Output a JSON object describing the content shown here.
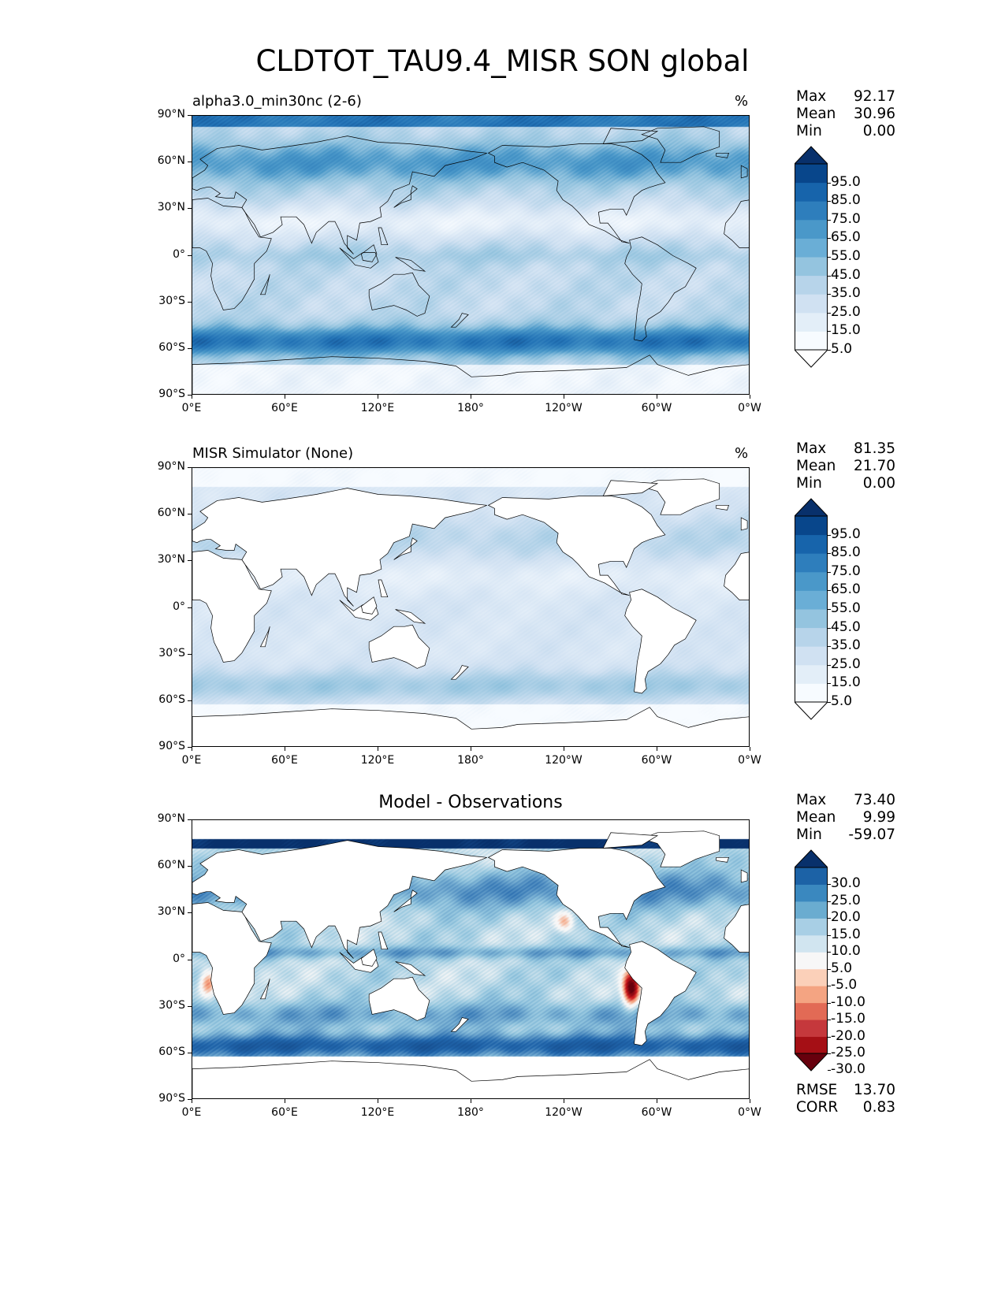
{
  "figure": {
    "title": "CLDTOT_TAU9.4_MISR SON global"
  },
  "panels": [
    {
      "id": "model",
      "left_title": "alpha3.0_min30nc (2-6)",
      "center_title": "",
      "unit": "%",
      "stats": {
        "max_label": "Max",
        "max": "92.17",
        "mean_label": "Mean",
        "mean": "30.96",
        "min_label": "Min",
        "min": "0.00"
      },
      "colorbar": {
        "labels": [
          "95.0",
          "85.0",
          "75.0",
          "65.0",
          "55.0",
          "45.0",
          "35.0",
          "25.0",
          "15.0",
          "5.0"
        ],
        "colors": [
          "#f7fbff",
          "#e3eef8",
          "#d0e1f2",
          "#b7d4ea",
          "#94c4df",
          "#6aaed6",
          "#4a98c9",
          "#2e7ebc",
          "#1764ab",
          "#08468b"
        ],
        "over_color": "#08306b",
        "under_color": "#ffffff"
      }
    },
    {
      "id": "obs",
      "left_title": "MISR Simulator (None)",
      "center_title": "",
      "unit": "%",
      "stats": {
        "max_label": "Max",
        "max": "81.35",
        "mean_label": "Mean",
        "mean": "21.70",
        "min_label": "Min",
        "min": "0.00"
      },
      "colorbar": {
        "labels": [
          "95.0",
          "85.0",
          "75.0",
          "65.0",
          "55.0",
          "45.0",
          "35.0",
          "25.0",
          "15.0",
          "5.0"
        ],
        "colors": [
          "#f7fbff",
          "#e3eef8",
          "#d0e1f2",
          "#b7d4ea",
          "#94c4df",
          "#6aaed6",
          "#4a98c9",
          "#2e7ebc",
          "#1764ab",
          "#08468b"
        ],
        "over_color": "#08306b",
        "under_color": "#ffffff"
      }
    },
    {
      "id": "diff",
      "left_title": "",
      "center_title": "Model - Observations",
      "unit": "",
      "stats": {
        "max_label": "Max",
        "max": "73.40",
        "mean_label": "Mean",
        "mean": "9.99",
        "min_label": "Min",
        "min": "-59.07"
      },
      "colorbar": {
        "labels": [
          "30.0",
          "25.0",
          "20.0",
          "15.0",
          "10.0",
          "5.0",
          "-5.0",
          "-10.0",
          "-15.0",
          "-20.0",
          "-25.0",
          "-30.0"
        ],
        "colors": [
          "#a50f15",
          "#c5383c",
          "#e26a55",
          "#f4a482",
          "#fbd0b9",
          "#f7f7f7",
          "#d1e5f0",
          "#a8cfe5",
          "#6aacd0",
          "#3a88bf",
          "#1c62a6"
        ],
        "over_color": "#08306b",
        "under_color": "#67000d"
      },
      "rmse_label": "RMSE",
      "rmse": "13.70",
      "corr_label": "CORR",
      "corr": "0.83"
    }
  ],
  "axes": {
    "yticks": [
      "90°N",
      "60°N",
      "30°N",
      "0°",
      "30°S",
      "60°S",
      "90°S"
    ],
    "xticks": [
      "0°E",
      "60°E",
      "120°E",
      "180°",
      "120°W",
      "60°W",
      "0°W"
    ]
  },
  "colors": {
    "land": "#ffffff",
    "coast": "#000000"
  }
}
